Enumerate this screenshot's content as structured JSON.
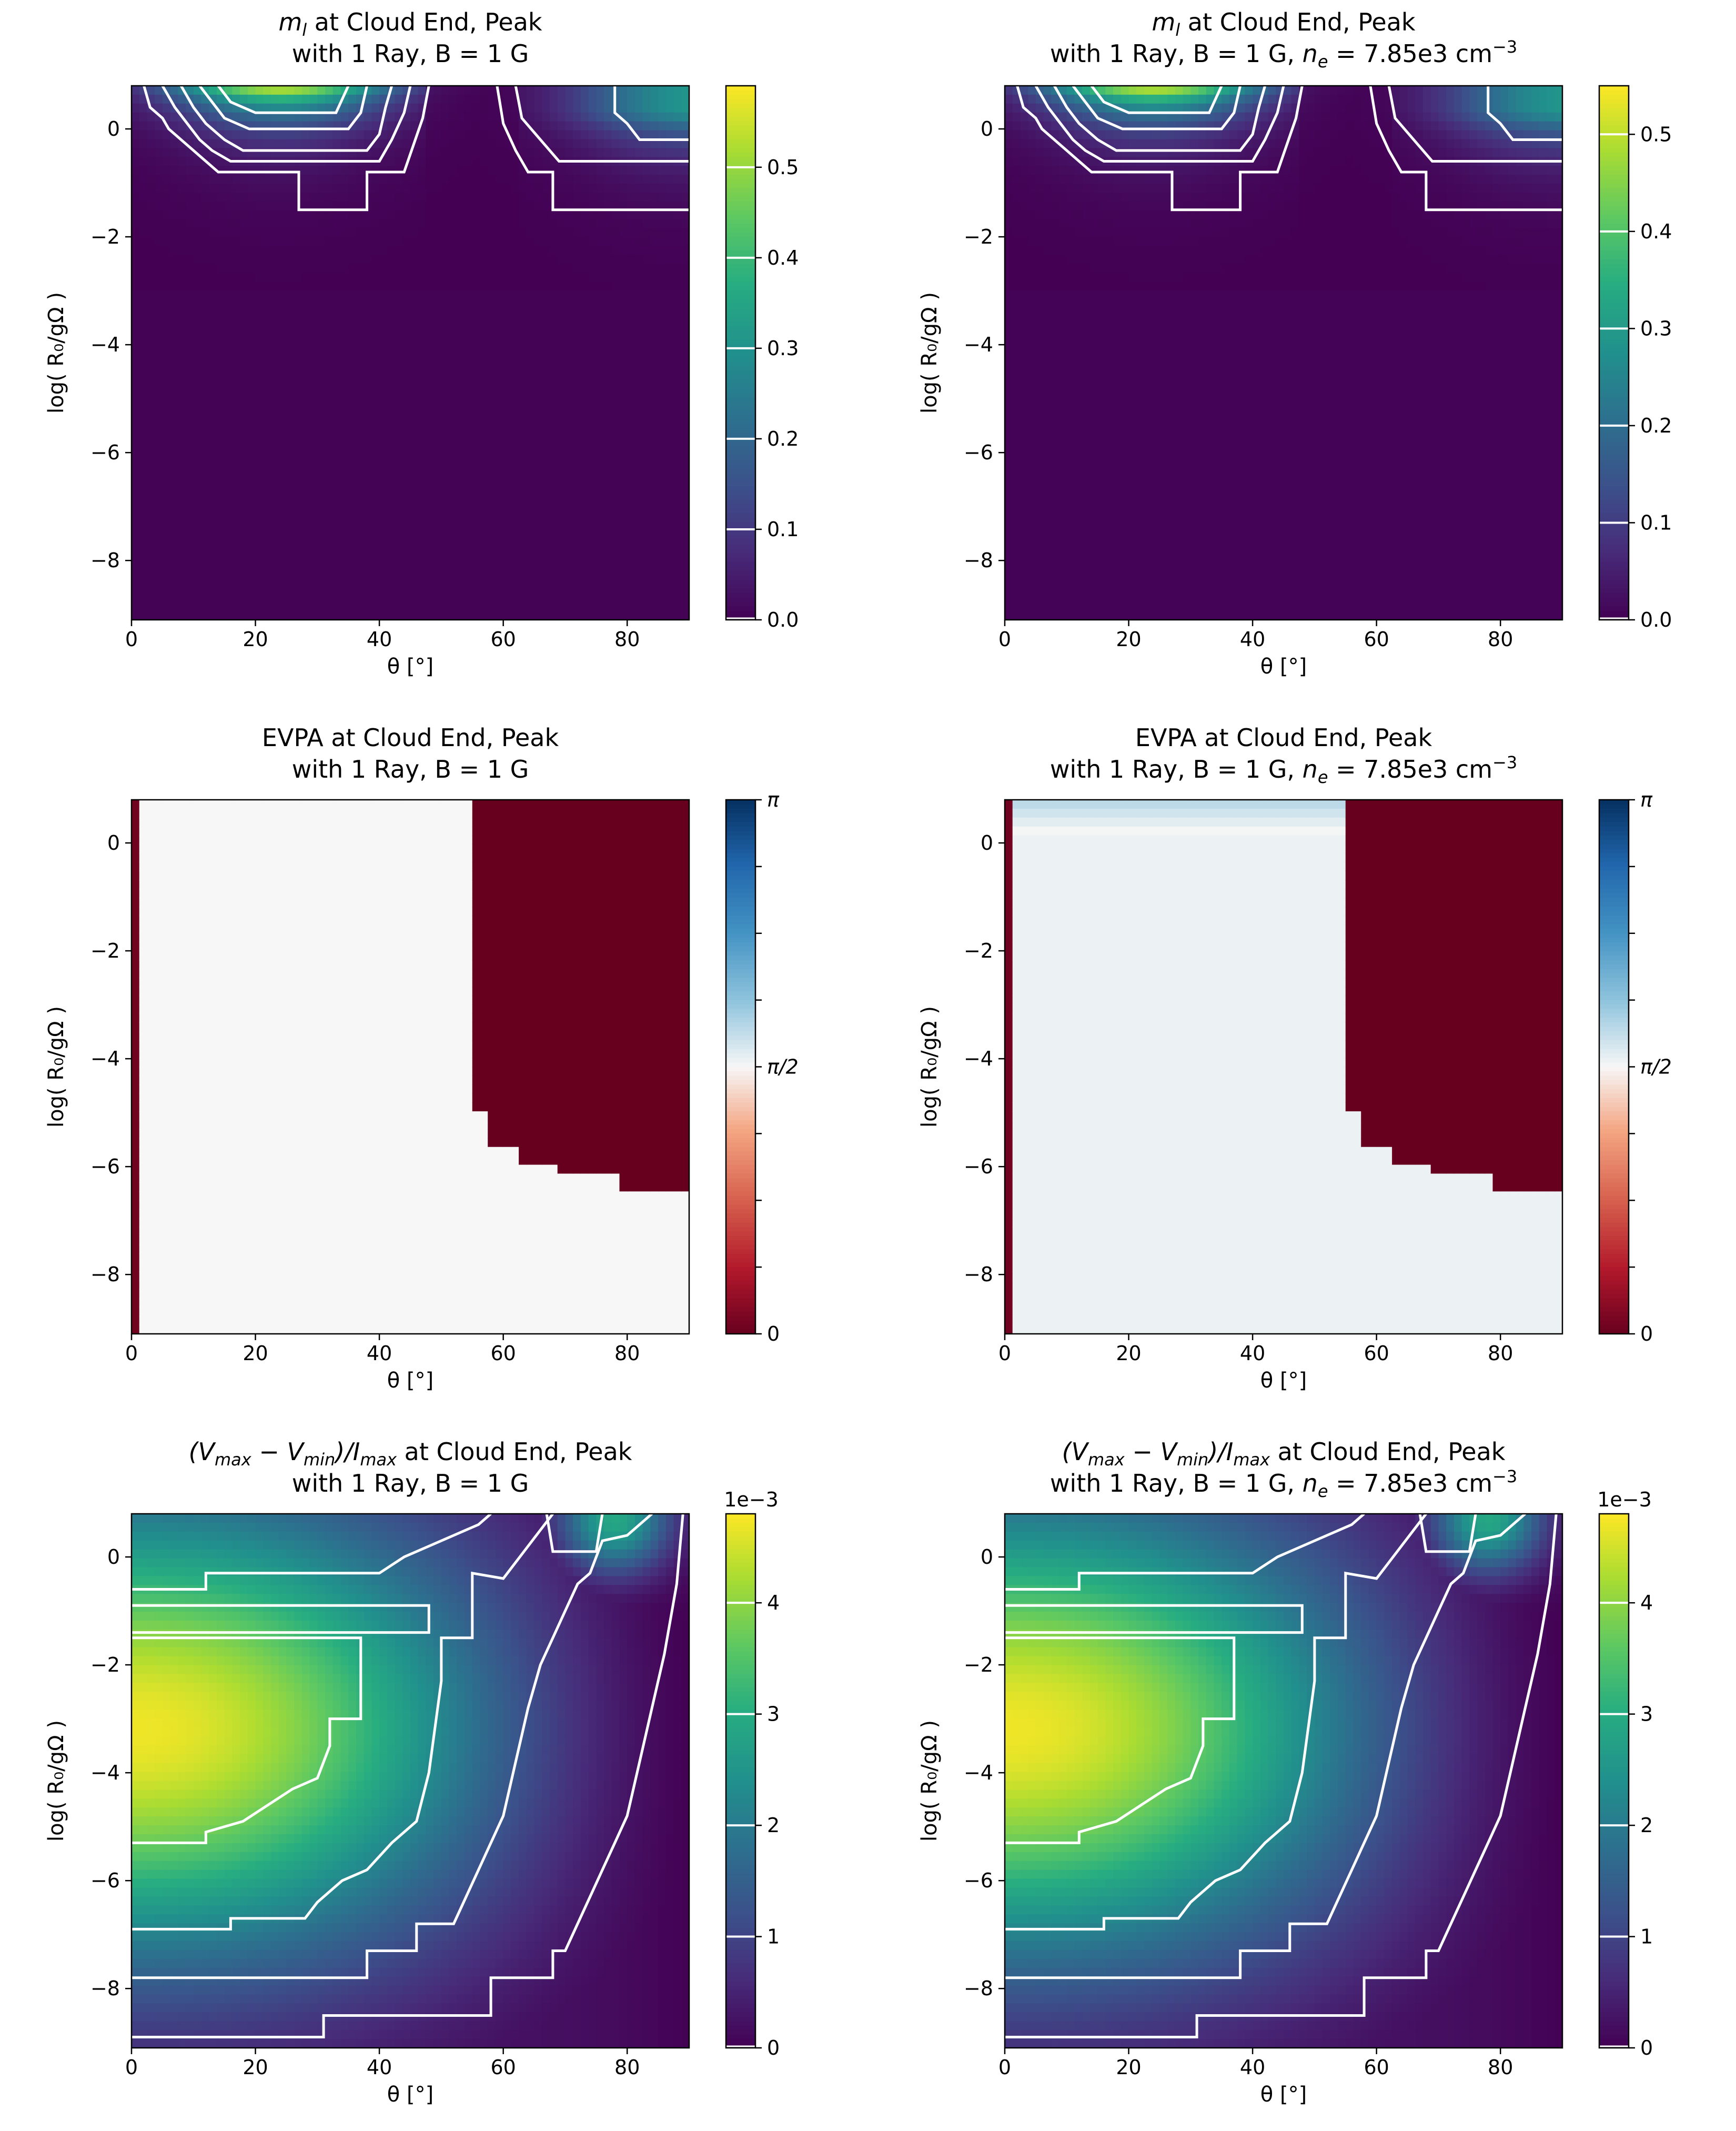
{
  "chart_data": [
    {
      "type": "heatmap",
      "panel": "ml-1",
      "title_main": "at Cloud End, Peak",
      "title_symbol": "m",
      "title_symbol_sub": "l",
      "subtitle": "with 1 Ray, B = 1 G",
      "xlabel": "θ [°]",
      "ylabel": "log( R₀/gΩ )",
      "xlim": [
        0,
        90
      ],
      "ylim": [
        -9.1,
        0.8
      ],
      "xticks": [
        "0",
        "20",
        "40",
        "60",
        "80"
      ],
      "yticks": [
        "0",
        "−2",
        "−4",
        "−6",
        "−8"
      ],
      "colormap": "viridis",
      "colorbar_range": [
        0.0,
        0.59
      ],
      "colorbar_ticks": [
        "0.0",
        "0.1",
        "0.2",
        "0.3",
        "0.4",
        "0.5"
      ],
      "contour_levels": [
        0.1,
        0.2,
        0.3,
        0.4,
        0.5
      ],
      "contour_color": "#ffffff",
      "features": [
        {
          "desc": "peak",
          "theta": 23,
          "logR": 0.8,
          "value": 0.59
        },
        {
          "desc": "secondary lobe",
          "theta": 85,
          "logR": 0.0,
          "value": 0.35
        },
        {
          "desc": "near-zero region",
          "logR_below": -3.0,
          "value": 0.0
        }
      ]
    },
    {
      "type": "heatmap",
      "panel": "ml-2",
      "title_main": "at Cloud End, Peak",
      "title_symbol": "m",
      "title_symbol_sub": "l",
      "subtitle": "with 1 Ray, B = 1 G,",
      "subtitle_ne": "= 7.85e3 cm",
      "subtitle_ne_exp": "−3",
      "xlabel": "θ [°]",
      "ylabel": "log( R₀/gΩ )",
      "xlim": [
        0,
        90
      ],
      "ylim": [
        -9.1,
        0.8
      ],
      "xticks": [
        "0",
        "20",
        "40",
        "60",
        "80"
      ],
      "yticks": [
        "0",
        "−2",
        "−4",
        "−6",
        "−8"
      ],
      "colormap": "viridis",
      "colorbar_range": [
        0.0,
        0.55
      ],
      "colorbar_ticks": [
        "0.0",
        "0.1",
        "0.2",
        "0.3",
        "0.4",
        "0.5"
      ],
      "contour_levels": [
        0.1,
        0.2,
        0.3,
        0.4,
        0.5
      ],
      "contour_color": "#ffffff"
    },
    {
      "type": "heatmap",
      "panel": "evpa-1",
      "title_main": "EVPA at Cloud End, Peak",
      "subtitle": "with 1 Ray, B = 1 G",
      "xlabel": "θ [°]",
      "ylabel": "log( R₀/gΩ )",
      "xlim": [
        0,
        90
      ],
      "ylim": [
        -9.1,
        0.8
      ],
      "xticks": [
        "0",
        "20",
        "40",
        "60",
        "80"
      ],
      "yticks": [
        "0",
        "−2",
        "−4",
        "−6",
        "−8"
      ],
      "colormap": "RdBu",
      "colorbar_range": [
        0,
        3.14159
      ],
      "colorbar_ticks": [
        "0",
        "π/2",
        "π"
      ],
      "regions": [
        {
          "desc": "thin band near theta=0",
          "theta": [
            0,
            1.5
          ],
          "value": 0
        },
        {
          "desc": "main region",
          "value": 1.5708
        },
        {
          "desc": "block",
          "theta_from": 55,
          "logR_above": -6.4,
          "value": 0
        }
      ]
    },
    {
      "type": "heatmap",
      "panel": "evpa-2",
      "title_main": "EVPA at Cloud End, Peak",
      "subtitle": "with 1 Ray, B = 1 G,",
      "subtitle_ne": "= 7.85e3 cm",
      "subtitle_ne_exp": "−3",
      "xlabel": "θ [°]",
      "ylabel": "log( R₀/gΩ )",
      "xlim": [
        0,
        90
      ],
      "ylim": [
        -9.1,
        0.8
      ],
      "xticks": [
        "0",
        "20",
        "40",
        "60",
        "80"
      ],
      "yticks": [
        "0",
        "−2",
        "−4",
        "−6",
        "−8"
      ],
      "colormap": "RdBu",
      "colorbar_range": [
        0,
        3.14159
      ],
      "colorbar_ticks": [
        "0",
        "π/2",
        "π"
      ]
    },
    {
      "type": "heatmap",
      "panel": "v-1",
      "title_main": "at Cloud End, Peak",
      "title_v": "(V",
      "title_v_sub1": "max",
      "title_v_mid": " − V",
      "title_v_sub2": "min",
      "title_v_i": ")/I",
      "title_v_sub3": "max",
      "subtitle": "with 1 Ray, B = 1 G",
      "xlabel": "θ [°]",
      "ylabel": "log( R₀/gΩ )",
      "xlim": [
        0,
        90
      ],
      "ylim": [
        -9.1,
        0.8
      ],
      "xticks": [
        "0",
        "20",
        "40",
        "60",
        "80"
      ],
      "yticks": [
        "0",
        "−2",
        "−4",
        "−6",
        "−8"
      ],
      "colormap": "viridis",
      "colorbar_range": [
        0.0,
        4.8
      ],
      "colorbar_ticks": [
        "0",
        "1",
        "2",
        "3",
        "4"
      ],
      "colorbar_multiplier": "1e−3",
      "contour_levels": [
        1,
        2,
        3,
        4
      ],
      "contour_color": "#ffffff"
    },
    {
      "type": "heatmap",
      "panel": "v-2",
      "title_main": "at Cloud End, Peak",
      "title_v": "(V",
      "title_v_sub1": "max",
      "title_v_mid": " − V",
      "title_v_sub2": "min",
      "title_v_i": ")/I",
      "title_v_sub3": "max",
      "subtitle": "with 1 Ray, B = 1 G,",
      "subtitle_ne": "= 7.85e3 cm",
      "subtitle_ne_exp": "−3",
      "xlabel": "θ [°]",
      "ylabel": "log( R₀/gΩ )",
      "xlim": [
        0,
        90
      ],
      "ylim": [
        -9.1,
        0.8
      ],
      "xticks": [
        "0",
        "20",
        "40",
        "60",
        "80"
      ],
      "yticks": [
        "0",
        "−2",
        "−4",
        "−6",
        "−8"
      ],
      "colormap": "viridis",
      "colorbar_range": [
        0.0,
        4.8
      ],
      "colorbar_ticks": [
        "0",
        "1",
        "2",
        "3",
        "4"
      ],
      "colorbar_multiplier": "1e−3",
      "contour_levels": [
        1,
        2,
        3,
        4
      ],
      "contour_color": "#ffffff"
    }
  ]
}
